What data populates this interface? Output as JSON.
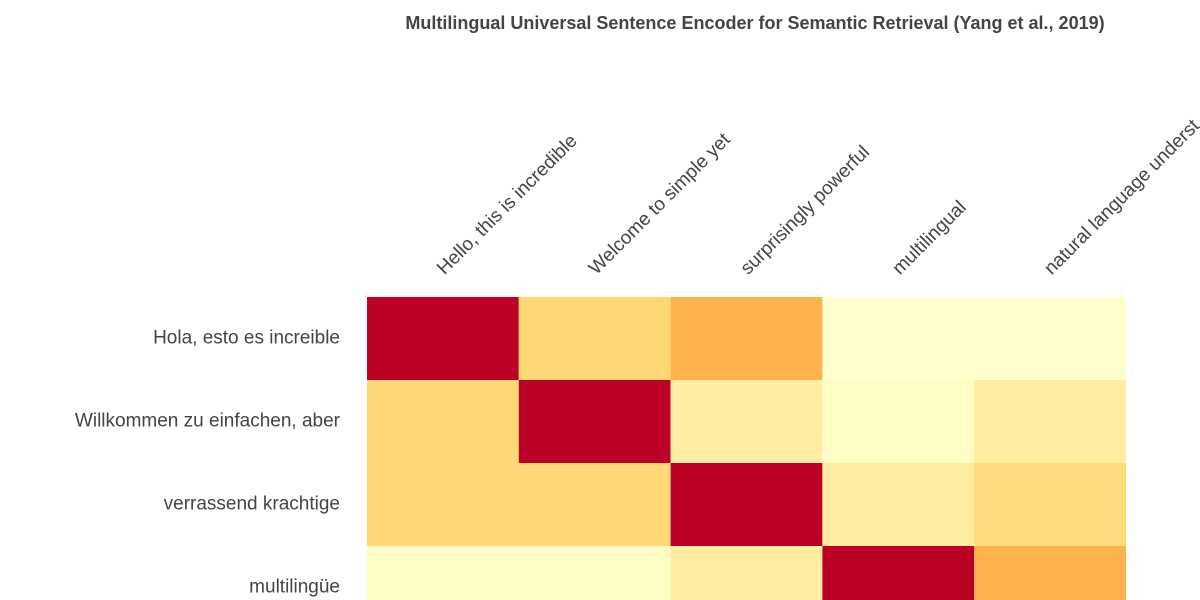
{
  "chart_data": {
    "type": "heatmap",
    "title": "Multilingual Universal Sentence Encoder for Semantic Retrieval (Yang et al., 2019)",
    "x": [
      "Hello, this is incredible",
      "Welcome to simple yet",
      "surprisingly powerful",
      "multilingual",
      "natural language underst"
    ],
    "y": [
      "Hola, esto es increible",
      "Willkommen zu einfachen, aber",
      "verrassend krachtige",
      "multilingüe"
    ],
    "z": [
      [
        1,
        0.29,
        0.43,
        0.0,
        0.0
      ],
      [
        0.29,
        1,
        0.14,
        0.02,
        0.14
      ],
      [
        0.29,
        0.29,
        1,
        0.14,
        0.27
      ],
      [
        0.02,
        0.02,
        0.14,
        1,
        0.43
      ]
    ],
    "zlim": [
      0,
      1
    ],
    "colorscale": [
      "#ffffcc",
      "#ffeda0",
      "#fed976",
      "#feb24c",
      "#fd8d3c",
      "#fc4e2a",
      "#e31a1c",
      "#bd0026"
    ]
  }
}
